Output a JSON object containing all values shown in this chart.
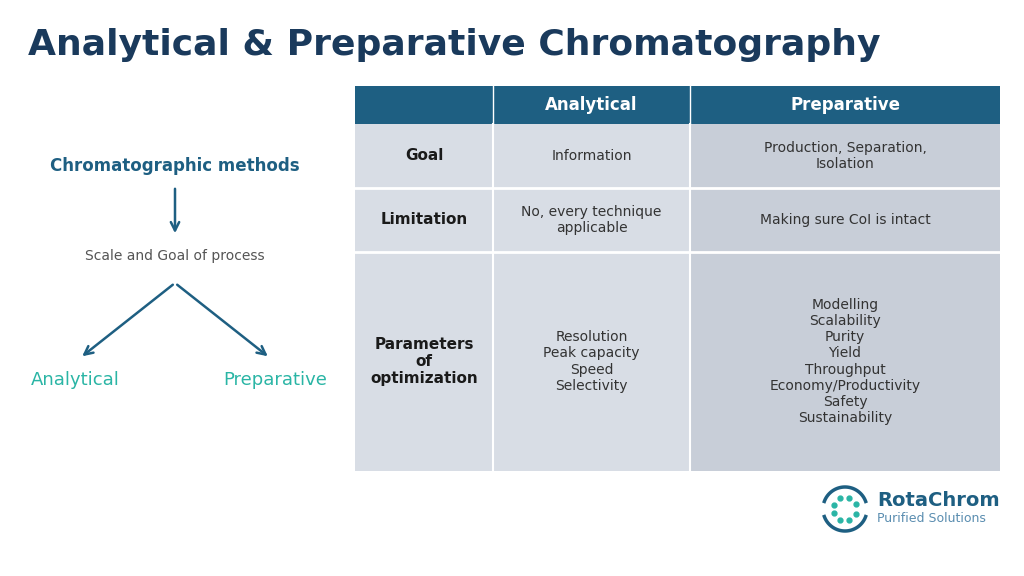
{
  "title": "Analytical & Preparative Chromatography",
  "title_color": "#1a3a5c",
  "title_fontsize": 26,
  "bg_color": "#ffffff",
  "header_bg": "#1e5f82",
  "header_text_color": "#ffffff",
  "header_fontsize": 12,
  "row_label_fontsize": 11,
  "cell_fontsize": 10,
  "tree_color": "#1e5f82",
  "tree_label_color": "#2ab5a5",
  "tree_methods_color": "#1e5f82",
  "col_headers": [
    "",
    "Analytical",
    "Preparative"
  ],
  "rows": [
    {
      "label": "Goal",
      "analytical": "Information",
      "preparative": "Production, Separation,\nIsolation",
      "row_bg": "#d8dde5",
      "prep_bg": "#c8ced8"
    },
    {
      "label": "Limitation",
      "analytical": "No, every technique\napplicable",
      "preparative": "Making sure CoI is intact",
      "row_bg": "#d8dde5",
      "prep_bg": "#c8ced8"
    },
    {
      "label": "Parameters\nof\noptimization",
      "analytical": "Resolution\nPeak capacity\nSpeed\nSelectivity",
      "preparative": "Modelling\nScalability\nPurity\nYield\nThroughput\nEconomy/Productivity\nSafety\nSustainability",
      "row_bg": "#d8dde5",
      "prep_bg": "#c8ced8"
    }
  ],
  "rotachrom_name": "RotaChrom",
  "rotachrom_sub": "Purified Solutions",
  "rotachrom_color": "#1e5f82",
  "rotachrom_sub_color": "#5a8db0",
  "teal_color": "#2ab5a5"
}
